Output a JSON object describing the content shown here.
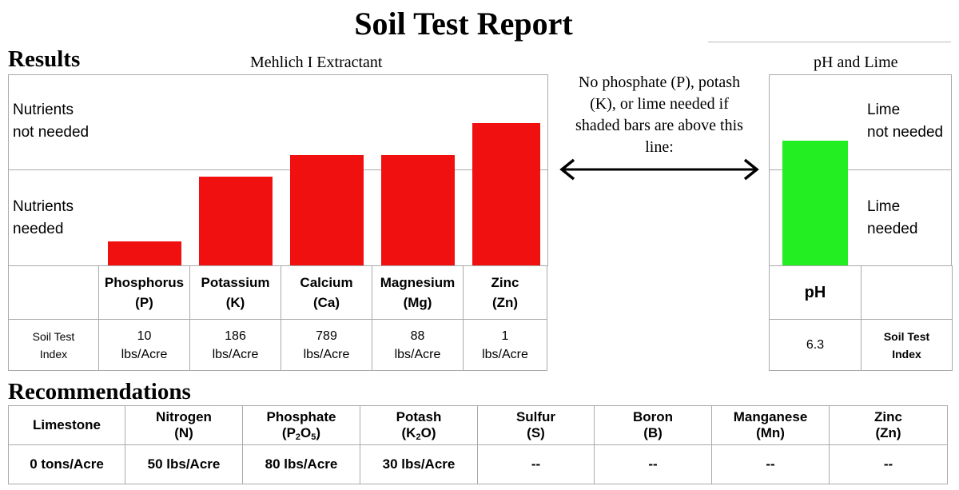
{
  "header": {
    "title": "Soil Test Report"
  },
  "results": {
    "heading": "Results",
    "extractant": "Mehlich I Extractant",
    "zone_top": [
      "Nutrients",
      "not needed"
    ],
    "zone_bottom": [
      "Nutrients",
      "needed"
    ],
    "nutrients": [
      {
        "name": "Phosphorus",
        "symbol": "(P)",
        "value": "10",
        "unit": "lbs/Acre"
      },
      {
        "name": "Potassium",
        "symbol": "(K)",
        "value": "186",
        "unit": "lbs/Acre"
      },
      {
        "name": "Calcium",
        "symbol": "(Ca)",
        "value": "789",
        "unit": "lbs/Acre"
      },
      {
        "name": "Magnesium",
        "symbol": "(Mg)",
        "value": "88",
        "unit": "lbs/Acre"
      },
      {
        "name": "Zinc",
        "symbol": "(Zn)",
        "value": "1",
        "unit": "lbs/Acre"
      }
    ],
    "row_label": [
      "Soil Test",
      "Index"
    ]
  },
  "note": {
    "lines": [
      "No phosphate (P), potash",
      "(K), or lime needed if",
      "shaded bars are above this",
      "line:"
    ]
  },
  "ph_section": {
    "heading": "pH and Lime",
    "zone_top": [
      "Lime",
      "not needed"
    ],
    "zone_bottom": [
      "Lime",
      "needed"
    ],
    "label": "pH",
    "value": "6.3",
    "row_label": [
      "Soil Test",
      "Index"
    ]
  },
  "chart_data": [
    {
      "type": "bar",
      "title": "Mehlich I Extractant",
      "categories": [
        "Phosphorus (P)",
        "Potassium (K)",
        "Calcium (Ca)",
        "Magnesium (Mg)",
        "Zinc (Zn)"
      ],
      "values": [
        0.25,
        0.925,
        1.15,
        1.15,
        1.48
      ],
      "value_scale": "threshold line = 1.0",
      "ylim": [
        0,
        2
      ],
      "color": "#f01010",
      "grid": "single threshold line"
    },
    {
      "type": "bar",
      "title": "pH and Lime",
      "categories": [
        "pH"
      ],
      "values": [
        1.3
      ],
      "value_scale": "threshold line = 1.0",
      "ylim": [
        0,
        2
      ],
      "color": "#22ee22",
      "grid": "single threshold line"
    }
  ],
  "recommendations": {
    "heading": "Recommendations",
    "items": [
      {
        "name": "Limestone",
        "symbol": "",
        "sub": "",
        "after": "",
        "value": "0 tons/Acre"
      },
      {
        "name": "Nitrogen",
        "symbol": "(N)",
        "sub": "",
        "after": "",
        "value": "50 lbs/Acre"
      },
      {
        "name": "Phosphate",
        "symbol": "(P",
        "sub": "2",
        "after": "O",
        "sub2": "5",
        "close": ")",
        "value": "80 lbs/Acre"
      },
      {
        "name": "Potash",
        "symbol": "(K",
        "sub": "2",
        "after": "O)",
        "value": "30 lbs/Acre"
      },
      {
        "name": "Sulfur",
        "symbol": "(S)",
        "sub": "",
        "after": "",
        "value": "--"
      },
      {
        "name": "Boron",
        "symbol": "(B)",
        "sub": "",
        "after": "",
        "value": "--"
      },
      {
        "name": "Manganese",
        "symbol": "(Mn)",
        "sub": "",
        "after": "",
        "value": "--"
      },
      {
        "name": "Zinc",
        "symbol": "(Zn)",
        "sub": "",
        "after": "",
        "value": "--"
      }
    ]
  }
}
